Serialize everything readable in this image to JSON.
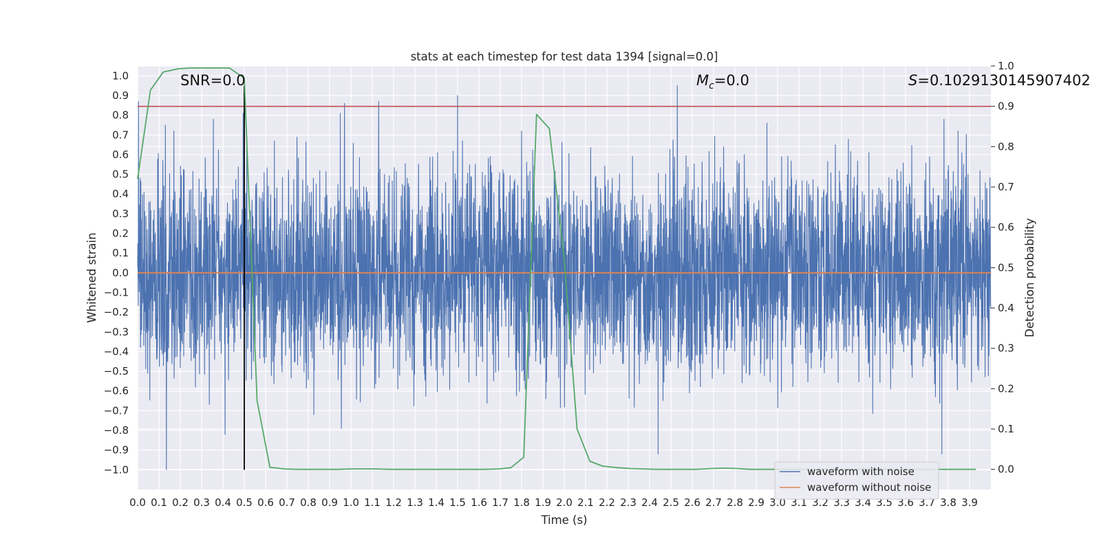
{
  "chart_data": {
    "type": "line",
    "title": "stats at each timestep for test data 1394 [signal=0.0]",
    "xlabel": "Time (s)",
    "ylabel_left": "Whitened strain",
    "ylabel_right": "Detection probability",
    "xlim": [
      0.0,
      4.0
    ],
    "ylim_left": [
      -1.1,
      1.05
    ],
    "ylim_right": [
      -0.05,
      1.0
    ],
    "grid": true,
    "legend_position": "lower-right",
    "x_ticks": [
      "0.0",
      "0.1",
      "0.2",
      "0.3",
      "0.4",
      "0.5",
      "0.6",
      "0.7",
      "0.8",
      "0.9",
      "1.0",
      "1.1",
      "1.2",
      "1.3",
      "1.4",
      "1.5",
      "1.6",
      "1.7",
      "1.8",
      "1.9",
      "2.0",
      "2.1",
      "2.2",
      "2.3",
      "2.4",
      "2.5",
      "2.6",
      "2.7",
      "2.8",
      "2.9",
      "3.0",
      "3.1",
      "3.2",
      "3.3",
      "3.4",
      "3.5",
      "3.6",
      "3.7",
      "3.8",
      "3.9"
    ],
    "y_ticks_left": [
      "1.0",
      "0.9",
      "0.8",
      "0.7",
      "0.6",
      "0.5",
      "0.4",
      "0.3",
      "0.2",
      "0.1",
      "0.0",
      "−0.1",
      "−0.2",
      "−0.3",
      "−0.4",
      "−0.5",
      "−0.6",
      "−0.7",
      "−0.8",
      "−0.9",
      "−1.0"
    ],
    "y_ticks_right": [
      "1.0",
      "0.9",
      "0.8",
      "0.7",
      "0.6",
      "0.5",
      "0.4",
      "0.3",
      "0.2",
      "0.1",
      "0.0"
    ],
    "annotations": {
      "snr": "SNR=0.0",
      "mc_symbol": "M",
      "mc_sub": "c",
      "mc_value": "=0.0",
      "s_symbol": "S",
      "s_value": "=0.1029130145907402"
    },
    "series": [
      {
        "name": "waveform with noise",
        "color": "#4c72b0",
        "axis": "left",
        "amplitude_range": [
          -1.0,
          0.95
        ],
        "peaks": [
          {
            "x": 0.004,
            "y": 0.87
          },
          {
            "x": 0.13,
            "y": 0.75
          },
          {
            "x": 0.135,
            "y": -1.0
          },
          {
            "x": 0.355,
            "y": 0.78
          },
          {
            "x": 0.41,
            "y": -0.82
          },
          {
            "x": 0.495,
            "y": 0.81
          },
          {
            "x": 0.95,
            "y": 0.81
          },
          {
            "x": 0.955,
            "y": -0.79
          },
          {
            "x": 0.97,
            "y": 0.86
          },
          {
            "x": 1.13,
            "y": 0.87
          },
          {
            "x": 1.5,
            "y": 0.9
          },
          {
            "x": 1.8,
            "y": 0.72
          },
          {
            "x": 2.44,
            "y": -0.92
          },
          {
            "x": 2.53,
            "y": 0.95
          },
          {
            "x": 2.95,
            "y": 0.76
          },
          {
            "x": 3.78,
            "y": 0.78
          },
          {
            "x": 3.77,
            "y": -0.92
          }
        ]
      },
      {
        "name": "waveform without noise",
        "color": "#dd8452",
        "axis": "left",
        "x": [
          0.0,
          4.0
        ],
        "y": [
          0.0,
          0.0
        ]
      },
      {
        "name": "detection probability",
        "color": "#55a868",
        "axis": "right",
        "x": [
          0.0,
          0.06,
          0.12,
          0.19,
          0.25,
          0.31,
          0.37,
          0.43,
          0.5,
          0.56,
          0.62,
          0.69,
          0.75,
          0.81,
          0.87,
          0.94,
          1.0,
          1.06,
          1.12,
          1.18,
          1.25,
          1.31,
          1.37,
          1.43,
          1.5,
          1.56,
          1.62,
          1.69,
          1.75,
          1.81,
          1.87,
          1.93,
          2.0,
          2.06,
          2.12,
          2.18,
          2.25,
          2.31,
          2.37,
          2.43,
          2.5,
          2.56,
          2.62,
          2.69,
          2.75,
          2.81,
          2.87,
          2.93,
          3.0,
          3.06,
          3.12,
          3.18,
          3.25,
          3.31,
          3.37,
          3.43,
          3.5,
          3.56,
          3.62,
          3.68,
          3.75,
          3.81,
          3.87,
          3.93
        ],
        "y": [
          0.72,
          0.94,
          0.985,
          0.993,
          0.995,
          0.995,
          0.995,
          0.995,
          0.97,
          0.17,
          0.005,
          0.001,
          0.0,
          0.0,
          0.0,
          0.0,
          0.001,
          0.001,
          0.001,
          0.0,
          0.0,
          0.0,
          0.0,
          0.0,
          0.0,
          0.0,
          0.0,
          0.001,
          0.004,
          0.03,
          0.88,
          0.845,
          0.52,
          0.1,
          0.02,
          0.008,
          0.004,
          0.002,
          0.001,
          0.0,
          0.0,
          0.0,
          0.0,
          0.002,
          0.003,
          0.002,
          0.0,
          0.0,
          0.0,
          0.0,
          0.0,
          0.0,
          0.0,
          0.0,
          0.0,
          0.0,
          0.0,
          0.0,
          0.0,
          0.0,
          0.0,
          0.0,
          0.0,
          0.0
        ]
      }
    ],
    "threshold": {
      "axis": "right",
      "y": 0.9,
      "color": "#c44e52"
    },
    "vline": {
      "x": 0.5,
      "y_range": [
        -1.0,
        0.95
      ],
      "color": "#000000"
    }
  }
}
